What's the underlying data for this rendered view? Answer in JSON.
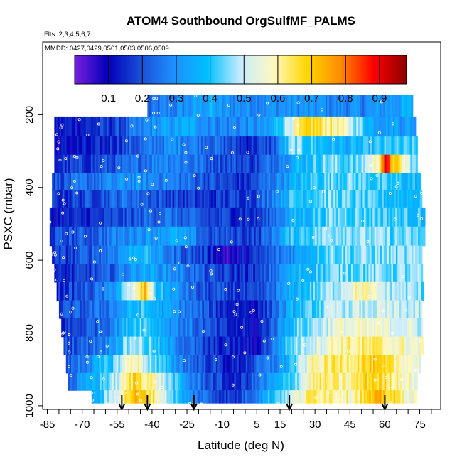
{
  "chart_data": {
    "type": "heatmap",
    "title": "ATOM4 Southbound OrgSulfMF_PALMS",
    "flights_label": "Flts: 2,3,4,5,6,7",
    "dates_label": "MMDD: 0427,0429,0501,0503,0506,0509",
    "xlabel": "Latitude (deg N)",
    "ylabel": "PSXC (mbar)",
    "xlim": [
      -87,
      84
    ],
    "ylim": [
      1010,
      0
    ],
    "y_reversed": true,
    "grid": false,
    "legend": "colorbar at top inside plot area",
    "x_ticks": [
      "-85",
      "-70",
      "-55",
      "-40",
      "-25",
      "-10",
      "5",
      "15",
      "30",
      "45",
      "60",
      "75"
    ],
    "y_ticks": [
      "200",
      "400",
      "600",
      "800",
      "1000"
    ],
    "colorbar": {
      "range": [
        0.0,
        0.98
      ],
      "tick_labels": [
        "0.1",
        "0.2",
        "0.3",
        "0.4",
        "0.5",
        "0.6",
        "0.7",
        "0.8",
        "0.9"
      ],
      "colors": [
        "#7a1fe0",
        "#0000b8",
        "#1a4fd8",
        "#1e90ff",
        "#00bfff",
        "#c8ecff",
        "#fff8c0",
        "#ffd700",
        "#ff8c00",
        "#ff0000",
        "#8b0000"
      ]
    },
    "pressure_levels": [
      175,
      235,
      285,
      335,
      385,
      430,
      480,
      535,
      585,
      635,
      685,
      735,
      785,
      835,
      885,
      935,
      980
    ],
    "band_extents": [
      [
        -42,
        72
      ],
      [
        -82,
        73
      ],
      [
        -82,
        74
      ],
      [
        -82,
        74
      ],
      [
        -83,
        75
      ],
      [
        -83,
        76
      ],
      [
        -84,
        77
      ],
      [
        -84,
        77
      ],
      [
        -83,
        76
      ],
      [
        -82,
        76
      ],
      [
        -81,
        76
      ],
      [
        -80,
        76
      ],
      [
        -79,
        76
      ],
      [
        -78,
        76
      ],
      [
        -77,
        75
      ],
      [
        -76,
        74
      ],
      [
        -66,
        73
      ]
    ],
    "levels": [
      [
        [
          -42,
          0.22
        ],
        [
          -25,
          0.3
        ],
        [
          -15,
          0.35
        ],
        [
          -10,
          0.3
        ],
        [
          20,
          0.3
        ],
        [
          50,
          0.28
        ],
        [
          72,
          0.35
        ]
      ],
      [
        [
          -82,
          0.12
        ],
        [
          -70,
          0.14
        ],
        [
          -55,
          0.18
        ],
        [
          -40,
          0.3
        ],
        [
          -25,
          0.35
        ],
        [
          -10,
          0.28
        ],
        [
          10,
          0.3
        ],
        [
          20,
          0.55
        ],
        [
          28,
          0.68
        ],
        [
          40,
          0.6
        ],
        [
          55,
          0.35
        ],
        [
          73,
          0.32
        ]
      ],
      [
        [
          -82,
          0.1
        ],
        [
          -65,
          0.12
        ],
        [
          -50,
          0.2
        ],
        [
          -30,
          0.3
        ],
        [
          -15,
          0.25
        ],
        [
          0,
          0.15
        ],
        [
          12,
          0.2
        ],
        [
          20,
          0.45
        ],
        [
          30,
          0.4
        ],
        [
          45,
          0.35
        ],
        [
          60,
          0.4
        ],
        [
          74,
          0.4
        ]
      ],
      [
        [
          -82,
          0.15
        ],
        [
          -65,
          0.18
        ],
        [
          -50,
          0.22
        ],
        [
          -35,
          0.3
        ],
        [
          -15,
          0.22
        ],
        [
          5,
          0.18
        ],
        [
          20,
          0.35
        ],
        [
          35,
          0.45
        ],
        [
          48,
          0.42
        ],
        [
          57,
          0.6
        ],
        [
          60,
          0.88
        ],
        [
          64,
          0.7
        ],
        [
          74,
          0.4
        ]
      ],
      [
        [
          -82,
          0.2
        ],
        [
          -65,
          0.25
        ],
        [
          -50,
          0.3
        ],
        [
          -35,
          0.28
        ],
        [
          -15,
          0.2
        ],
        [
          0,
          0.15
        ],
        [
          15,
          0.3
        ],
        [
          30,
          0.42
        ],
        [
          45,
          0.45
        ],
        [
          60,
          0.4
        ],
        [
          75,
          0.38
        ]
      ],
      [
        [
          -83,
          0.15
        ],
        [
          -65,
          0.2
        ],
        [
          -50,
          0.25
        ],
        [
          -30,
          0.18
        ],
        [
          -15,
          0.15
        ],
        [
          5,
          0.2
        ],
        [
          20,
          0.4
        ],
        [
          35,
          0.45
        ],
        [
          55,
          0.4
        ],
        [
          76,
          0.38
        ]
      ],
      [
        [
          -84,
          0.12
        ],
        [
          -65,
          0.15
        ],
        [
          -50,
          0.2
        ],
        [
          -35,
          0.25
        ],
        [
          -15,
          0.18
        ],
        [
          5,
          0.15
        ],
        [
          20,
          0.35
        ],
        [
          40,
          0.45
        ],
        [
          60,
          0.42
        ],
        [
          77,
          0.4
        ]
      ],
      [
        [
          -84,
          0.18
        ],
        [
          -65,
          0.22
        ],
        [
          -50,
          0.3
        ],
        [
          -30,
          0.35
        ],
        [
          -15,
          0.2
        ],
        [
          5,
          0.18
        ],
        [
          20,
          0.4
        ],
        [
          40,
          0.48
        ],
        [
          60,
          0.45
        ],
        [
          77,
          0.42
        ]
      ],
      [
        [
          -83,
          0.15
        ],
        [
          -60,
          0.25
        ],
        [
          -45,
          0.4
        ],
        [
          -35,
          0.28
        ],
        [
          -15,
          0.15
        ],
        [
          -8,
          0.05
        ],
        [
          5,
          0.15
        ],
        [
          20,
          0.3
        ],
        [
          35,
          0.45
        ],
        [
          55,
          0.45
        ],
        [
          76,
          0.45
        ]
      ],
      [
        [
          -82,
          0.12
        ],
        [
          -60,
          0.2
        ],
        [
          -45,
          0.35
        ],
        [
          -30,
          0.3
        ],
        [
          -15,
          0.18
        ],
        [
          5,
          0.15
        ],
        [
          20,
          0.35
        ],
        [
          40,
          0.45
        ],
        [
          60,
          0.45
        ],
        [
          76,
          0.45
        ]
      ],
      [
        [
          -81,
          0.15
        ],
        [
          -60,
          0.25
        ],
        [
          -47,
          0.55
        ],
        [
          -43,
          0.72
        ],
        [
          -38,
          0.4
        ],
        [
          -20,
          0.2
        ],
        [
          5,
          0.15
        ],
        [
          20,
          0.35
        ],
        [
          40,
          0.5
        ],
        [
          50,
          0.6
        ],
        [
          60,
          0.5
        ],
        [
          76,
          0.45
        ]
      ],
      [
        [
          -80,
          0.18
        ],
        [
          -60,
          0.25
        ],
        [
          -45,
          0.4
        ],
        [
          -30,
          0.3
        ],
        [
          -10,
          0.15
        ],
        [
          5,
          0.12
        ],
        [
          20,
          0.35
        ],
        [
          40,
          0.5
        ],
        [
          60,
          0.5
        ],
        [
          76,
          0.48
        ]
      ],
      [
        [
          -79,
          0.15
        ],
        [
          -60,
          0.25
        ],
        [
          -45,
          0.45
        ],
        [
          -30,
          0.3
        ],
        [
          -10,
          0.15
        ],
        [
          5,
          0.1
        ],
        [
          20,
          0.4
        ],
        [
          40,
          0.55
        ],
        [
          60,
          0.55
        ],
        [
          76,
          0.5
        ]
      ],
      [
        [
          -78,
          0.18
        ],
        [
          -60,
          0.28
        ],
        [
          -48,
          0.5
        ],
        [
          -35,
          0.35
        ],
        [
          -15,
          0.15
        ],
        [
          5,
          0.1
        ],
        [
          20,
          0.45
        ],
        [
          40,
          0.6
        ],
        [
          55,
          0.62
        ],
        [
          76,
          0.55
        ]
      ],
      [
        [
          -77,
          0.2
        ],
        [
          -58,
          0.4
        ],
        [
          -48,
          0.62
        ],
        [
          -40,
          0.45
        ],
        [
          -25,
          0.25
        ],
        [
          -5,
          0.12
        ],
        [
          15,
          0.3
        ],
        [
          30,
          0.6
        ],
        [
          55,
          0.68
        ],
        [
          75,
          0.55
        ]
      ],
      [
        [
          -76,
          0.22
        ],
        [
          -55,
          0.5
        ],
        [
          -47,
          0.7
        ],
        [
          -40,
          0.6
        ],
        [
          -25,
          0.3
        ],
        [
          -5,
          0.12
        ],
        [
          15,
          0.35
        ],
        [
          30,
          0.62
        ],
        [
          45,
          0.6
        ],
        [
          55,
          0.7
        ],
        [
          74,
          0.55
        ]
      ],
      [
        [
          -66,
          0.3
        ],
        [
          -55,
          0.55
        ],
        [
          -48,
          0.72
        ],
        [
          -40,
          0.65
        ],
        [
          -25,
          0.3
        ],
        [
          -5,
          0.15
        ],
        [
          15,
          0.45
        ],
        [
          30,
          0.65
        ],
        [
          45,
          0.6
        ],
        [
          58,
          0.72
        ],
        [
          73,
          0.55
        ]
      ]
    ],
    "profile_markers_lat": [
      -53,
      -42,
      -22,
      19,
      60
    ]
  }
}
